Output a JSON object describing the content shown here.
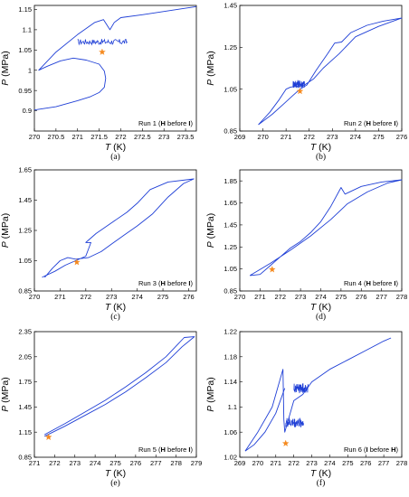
{
  "chart_data": [
    {
      "type": "line",
      "caption": "(a)",
      "run_label": {
        "prefix": "Run 1 (",
        "first": "H",
        "middle": " before ",
        "second": "I",
        "suffix": ")"
      },
      "xlabel": {
        "var": "T",
        "unit": "(K)"
      },
      "ylabel": {
        "var": "P",
        "unit": "(MPa)"
      },
      "xlim": [
        270,
        273.75
      ],
      "ylim": [
        0.85,
        1.16
      ],
      "xticks": [
        "270",
        "270.5",
        "271",
        "271.5",
        "272",
        "272.5",
        "273",
        "273.5"
      ],
      "yticks": [
        "0.9",
        "0.95",
        "1",
        "1.05",
        "1.1",
        "1.15"
      ],
      "x": [
        270.0,
        270.5,
        271.0,
        271.3,
        271.5,
        271.62,
        271.65,
        271.62,
        271.5,
        271.2,
        270.9,
        270.6,
        270.3,
        270.1,
        270.5,
        271.0,
        271.4,
        271.6,
        271.75,
        271.85,
        272.0,
        272.5,
        273.0,
        273.5,
        273.75
      ],
      "y": [
        0.902,
        0.91,
        0.925,
        0.935,
        0.945,
        0.958,
        0.98,
        0.998,
        1.015,
        1.025,
        1.03,
        1.023,
        1.01,
        1.0,
        1.045,
        1.088,
        1.118,
        1.125,
        1.1,
        1.118,
        1.13,
        1.137,
        1.145,
        1.153,
        1.157
      ],
      "noise": [
        {
          "x": [
            271.0,
            272.15
          ],
          "y": 1.07,
          "amp": 0.007
        }
      ],
      "marker": {
        "x": 271.57,
        "y": 1.045
      }
    },
    {
      "type": "line",
      "caption": "(b)",
      "run_label": {
        "prefix": "Run 2 (",
        "first": "H",
        "middle": " before ",
        "second": "I",
        "suffix": ")"
      },
      "xlabel": {
        "var": "T",
        "unit": "(K)"
      },
      "ylabel": {
        "var": "P",
        "unit": "(MPa)"
      },
      "xlim": [
        269,
        276
      ],
      "ylim": [
        0.85,
        1.45
      ],
      "xticks": [
        "269",
        "270",
        "271",
        "272",
        "273",
        "274",
        "275",
        "276"
      ],
      "yticks": [
        "0.85",
        "1.05",
        "1.25",
        "1.45"
      ],
      "x": [
        269.8,
        270.4,
        270.9,
        271.3,
        271.6,
        271.9,
        272.3,
        272.8,
        273.1,
        273.4,
        273.8,
        274.5,
        275.2,
        276.0,
        275.0,
        274.0,
        273.3,
        272.9,
        272.6,
        272.2,
        271.8,
        271.6,
        271.4,
        271.2,
        271.0,
        270.7,
        270.3,
        269.8
      ],
      "y": [
        0.88,
        0.93,
        0.98,
        1.02,
        1.05,
        1.07,
        1.14,
        1.22,
        1.27,
        1.275,
        1.32,
        1.355,
        1.375,
        1.39,
        1.35,
        1.3,
        1.22,
        1.18,
        1.15,
        1.1,
        1.07,
        1.065,
        1.062,
        1.06,
        1.05,
        1.0,
        0.94,
        0.88
      ],
      "noise": [
        {
          "x": [
            271.3,
            271.8
          ],
          "y": 1.075,
          "amp": 0.02
        }
      ],
      "marker": {
        "x": 271.6,
        "y": 1.04
      }
    },
    {
      "type": "line",
      "caption": "(c)",
      "run_label": {
        "prefix": "Run 3 (",
        "first": "H",
        "middle": " before ",
        "second": "I",
        "suffix": ")"
      },
      "xlabel": {
        "var": "T",
        "unit": "(K)"
      },
      "ylabel": {
        "var": "P",
        "unit": "(MPa)"
      },
      "xlim": [
        270,
        276.3
      ],
      "ylim": [
        0.85,
        1.65
      ],
      "xticks": [
        "270",
        "271",
        "272",
        "273",
        "274",
        "275",
        "276"
      ],
      "yticks": [
        "0.85",
        "1.05",
        "1.25",
        "1.45",
        "1.65"
      ],
      "x": [
        270.3,
        270.8,
        271.2,
        271.6,
        272.0,
        272.2,
        272.0,
        272.4,
        273.0,
        273.6,
        274.0,
        274.5,
        275.2,
        276.2,
        275.8,
        275.2,
        274.6,
        274.0,
        273.5,
        273.0,
        272.6,
        272.1,
        271.6,
        271.3,
        271.0,
        270.7,
        270.4
      ],
      "y": [
        0.94,
        0.98,
        1.02,
        1.05,
        1.08,
        1.17,
        1.17,
        1.23,
        1.3,
        1.37,
        1.43,
        1.52,
        1.57,
        1.59,
        1.56,
        1.47,
        1.36,
        1.28,
        1.22,
        1.16,
        1.11,
        1.07,
        1.06,
        1.07,
        1.05,
        1.0,
        0.94
      ],
      "noise": [],
      "marker": {
        "x": 271.65,
        "y": 1.04
      }
    },
    {
      "type": "line",
      "caption": "(d)",
      "run_label": {
        "prefix": "Run 4 (",
        "first": "H",
        "middle": " before ",
        "second": "I",
        "suffix": ")"
      },
      "xlabel": {
        "var": "T",
        "unit": "(K)"
      },
      "ylabel": {
        "var": "P",
        "unit": "(MPa)"
      },
      "xlim": [
        270,
        278
      ],
      "ylim": [
        0.85,
        1.95
      ],
      "xticks": [
        "270",
        "271",
        "272",
        "273",
        "274",
        "275",
        "276",
        "277",
        "278"
      ],
      "yticks": [
        "0.85",
        "1.05",
        "1.25",
        "1.45",
        "1.65",
        "1.85"
      ],
      "x": [
        270.5,
        271.5,
        272.5,
        273.5,
        274.5,
        275.3,
        276.3,
        277.3,
        278.0,
        277.0,
        276.0,
        275.2,
        275.0,
        274.5,
        274.0,
        273.5,
        273.0,
        272.5,
        272.0,
        271.5,
        271.0,
        270.5
      ],
      "y": [
        0.99,
        1.1,
        1.22,
        1.35,
        1.5,
        1.64,
        1.75,
        1.83,
        1.86,
        1.84,
        1.8,
        1.73,
        1.79,
        1.62,
        1.48,
        1.38,
        1.3,
        1.24,
        1.16,
        1.08,
        1.0,
        0.99
      ],
      "noise": [],
      "marker": {
        "x": 271.6,
        "y": 1.045
      }
    },
    {
      "type": "line",
      "caption": "(e)",
      "run_label": {
        "prefix": "Run 5 (",
        "first": "H",
        "middle": " before ",
        "second": "I",
        "suffix": ")"
      },
      "xlabel": {
        "var": "T",
        "unit": "(K)"
      },
      "ylabel": {
        "var": "P",
        "unit": "(MPa)"
      },
      "xlim": [
        271,
        279
      ],
      "ylim": [
        0.85,
        2.35
      ],
      "xticks": [
        "271",
        "272",
        "273",
        "274",
        "275",
        "276",
        "277",
        "278",
        "279"
      ],
      "yticks": [
        "0.85",
        "1.15",
        "1.45",
        "1.75",
        "2.05",
        "2.35"
      ],
      "x": [
        271.5,
        272.5,
        273.5,
        274.5,
        275.5,
        276.5,
        277.5,
        278.3,
        278.9,
        278.4,
        277.5,
        276.5,
        275.5,
        274.5,
        273.5,
        272.5,
        271.5
      ],
      "y": [
        1.1,
        1.22,
        1.35,
        1.48,
        1.63,
        1.8,
        1.98,
        2.17,
        2.29,
        2.28,
        2.05,
        1.86,
        1.69,
        1.53,
        1.39,
        1.25,
        1.12
      ],
      "noise": [],
      "marker": {
        "x": 271.7,
        "y": 1.09
      }
    },
    {
      "type": "line",
      "caption": "(f)",
      "run_label": {
        "prefix": "Run 6 (",
        "first": "I",
        "middle": " before ",
        "second": "H",
        "suffix": ")"
      },
      "xlabel": {
        "var": "T",
        "unit": "(K)"
      },
      "ylabel": {
        "var": "P",
        "unit": "(MPa)"
      },
      "xlim": [
        269,
        278
      ],
      "ylim": [
        1.02,
        1.22
      ],
      "xticks": [
        "269",
        "270",
        "271",
        "272",
        "273",
        "274",
        "275",
        "276",
        "277",
        "278"
      ],
      "yticks": [
        "1.02",
        "1.06",
        "1.1",
        "1.14",
        "1.18",
        "1.22"
      ],
      "x": [
        269.3,
        270.0,
        270.8,
        271.35,
        271.4,
        271.45,
        271.5,
        272.0,
        272.5,
        273.0,
        274.0,
        275.0,
        276.0,
        277.0,
        277.4
      ],
      "y": [
        1.03,
        1.06,
        1.1,
        1.155,
        1.16,
        1.08,
        1.06,
        1.11,
        1.12,
        1.14,
        1.16,
        1.175,
        1.19,
        1.205,
        1.21
      ],
      "extra": [
        {
          "x": [
            269.3,
            269.8,
            270.4,
            271.0,
            271.5
          ],
          "y": [
            1.03,
            1.04,
            1.06,
            1.09,
            1.13
          ]
        }
      ],
      "noise": [
        {
          "x": [
            271.55,
            272.55
          ],
          "y": 1.075,
          "amp": 0.008
        },
        {
          "x": [
            272.0,
            272.8
          ],
          "y": 1.13,
          "amp": 0.008
        }
      ],
      "marker": {
        "x": 271.55,
        "y": 1.042
      }
    }
  ]
}
